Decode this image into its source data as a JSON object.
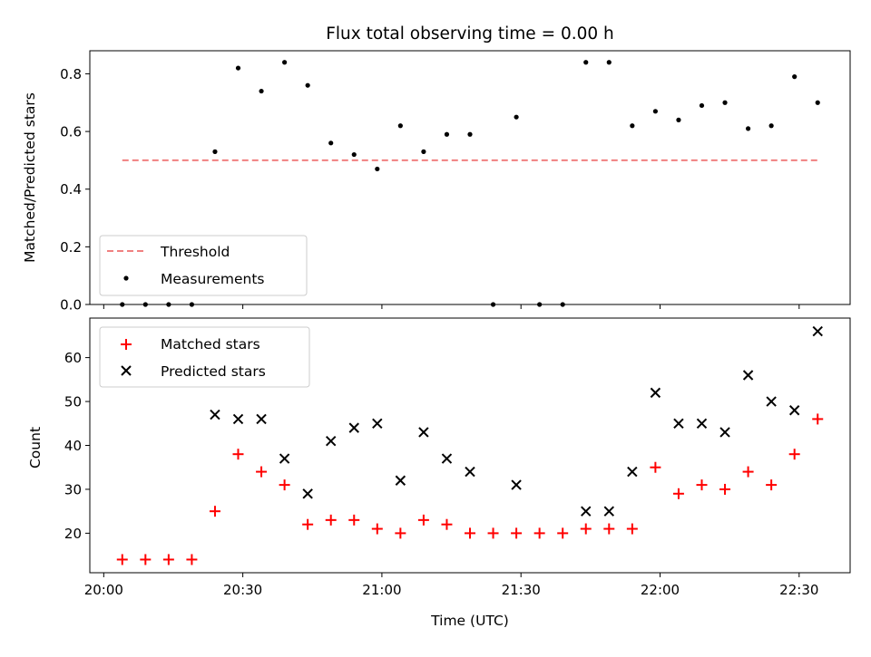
{
  "chart_data": [
    {
      "type": "scatter",
      "title": "Flux total observing time = 0.00 h",
      "xlabel": "",
      "ylabel": "Matched/Predicted stars",
      "ylim": [
        0,
        0.88
      ],
      "yticks": [
        0.0,
        0.2,
        0.4,
        0.6,
        0.8
      ],
      "ytick_labels": [
        "0.0",
        "0.2",
        "0.4",
        "0.6",
        "0.8"
      ],
      "grid": false,
      "legend_placement": "lower-left",
      "series": [
        {
          "name": "Threshold",
          "kind": "line",
          "style": "dashed",
          "color": "#f08080",
          "x": [
            "20:04",
            "22:34"
          ],
          "y": [
            0.5,
            0.5
          ]
        },
        {
          "name": "Measurements",
          "kind": "scatter",
          "marker": "dot",
          "color": "#000000",
          "x": [
            "20:04",
            "20:09",
            "20:14",
            "20:19",
            "20:24",
            "20:29",
            "20:34",
            "20:39",
            "20:44",
            "20:49",
            "20:54",
            "20:59",
            "21:04",
            "21:09",
            "21:14",
            "21:19",
            "21:24",
            "21:29",
            "21:34",
            "21:39",
            "21:44",
            "21:49",
            "21:54",
            "21:59",
            "22:04",
            "22:09",
            "22:14",
            "22:19",
            "22:24",
            "22:29",
            "22:34"
          ],
          "y": [
            0,
            0,
            0,
            0,
            0.53,
            0.82,
            0.74,
            0.84,
            0.76,
            0.56,
            0.52,
            0.47,
            0.62,
            0.53,
            0.59,
            0.59,
            0,
            0.65,
            0,
            0,
            0.84,
            0.84,
            0.62,
            0.67,
            0.64,
            0.69,
            0.7,
            0.61,
            0.62,
            0.79,
            0.7
          ]
        }
      ]
    },
    {
      "type": "scatter",
      "title": "",
      "xlabel": "Time (UTC)",
      "ylabel": "Count",
      "ylim": [
        11,
        69
      ],
      "yticks": [
        20,
        30,
        40,
        50,
        60
      ],
      "ytick_labels": [
        "20",
        "30",
        "40",
        "50",
        "60"
      ],
      "x_axis": "time",
      "xticks": [
        "20:00",
        "20:30",
        "21:00",
        "21:30",
        "22:00",
        "22:30"
      ],
      "xlim": [
        "19:57",
        "22:41"
      ],
      "grid": false,
      "legend_placement": "top-left",
      "series": [
        {
          "name": "Matched stars",
          "marker": "plus",
          "color": "#ff0000",
          "x": [
            "20:04",
            "20:09",
            "20:14",
            "20:19",
            "20:24",
            "20:29",
            "20:34",
            "20:39",
            "20:44",
            "20:49",
            "20:54",
            "20:59",
            "21:04",
            "21:09",
            "21:14",
            "21:19",
            "21:24",
            "21:29",
            "21:34",
            "21:39",
            "21:44",
            "21:49",
            "21:54",
            "21:59",
            "22:04",
            "22:09",
            "22:14",
            "22:19",
            "22:24",
            "22:29",
            "22:34"
          ],
          "y": [
            14,
            14,
            14,
            14,
            25,
            38,
            34,
            31,
            22,
            23,
            23,
            21,
            20,
            23,
            22,
            20,
            20,
            20,
            20,
            20,
            21,
            21,
            21,
            35,
            29,
            31,
            30,
            34,
            31,
            38,
            46
          ]
        },
        {
          "name": "Predicted stars",
          "marker": "x",
          "color": "#000000",
          "x": [
            "20:24",
            "20:29",
            "20:34",
            "20:39",
            "20:44",
            "20:49",
            "20:54",
            "20:59",
            "21:04",
            "21:09",
            "21:14",
            "21:19",
            "21:29",
            "21:44",
            "21:49",
            "21:54",
            "21:59",
            "22:04",
            "22:09",
            "22:14",
            "22:19",
            "22:24",
            "22:29",
            "22:34"
          ],
          "y": [
            47,
            46,
            46,
            37,
            29,
            41,
            44,
            45,
            32,
            43,
            37,
            34,
            31,
            25,
            25,
            34,
            52,
            45,
            45,
            43,
            56,
            50,
            48,
            66
          ]
        }
      ]
    }
  ]
}
